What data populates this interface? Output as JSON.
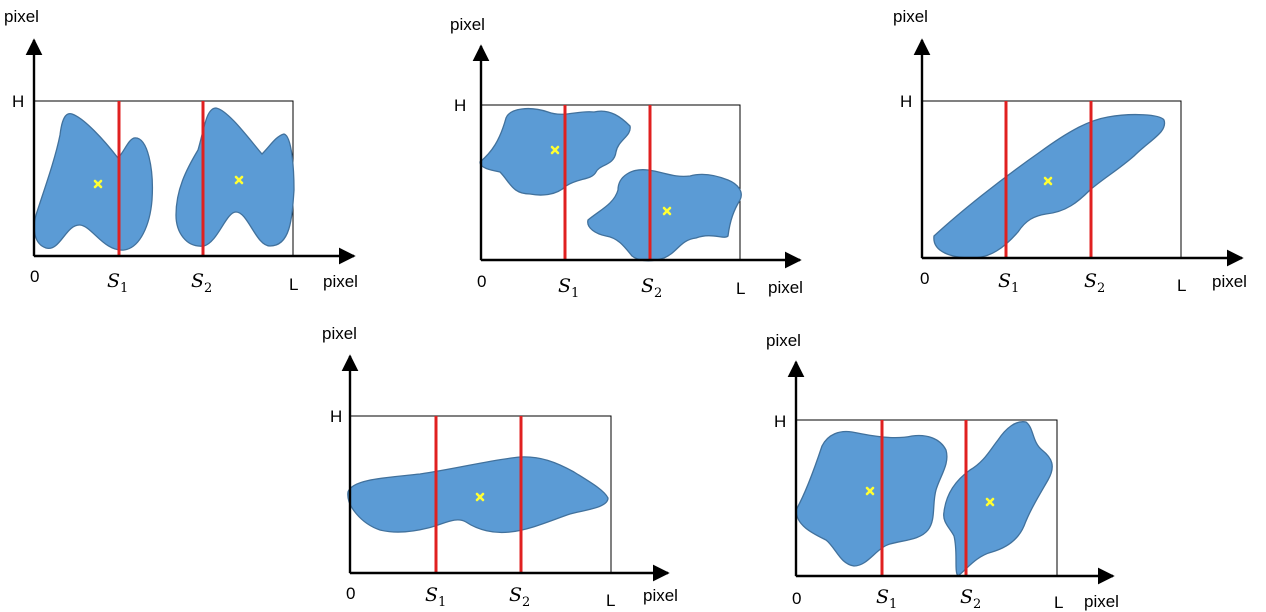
{
  "labels": {
    "y_axis": "pixel",
    "x_axis": "pixel",
    "height": "H",
    "length": "L",
    "origin": "0",
    "split1_letter": "S",
    "split1_index": "1",
    "split2_letter": "S",
    "split2_index": "2"
  },
  "colors": {
    "blob_fill": "#5b9bd5",
    "split_line": "#e02020",
    "centroid_marker": "#ffff33"
  },
  "panel_count": 5,
  "blobs_per_panel": [
    2,
    2,
    1,
    1,
    2
  ]
}
